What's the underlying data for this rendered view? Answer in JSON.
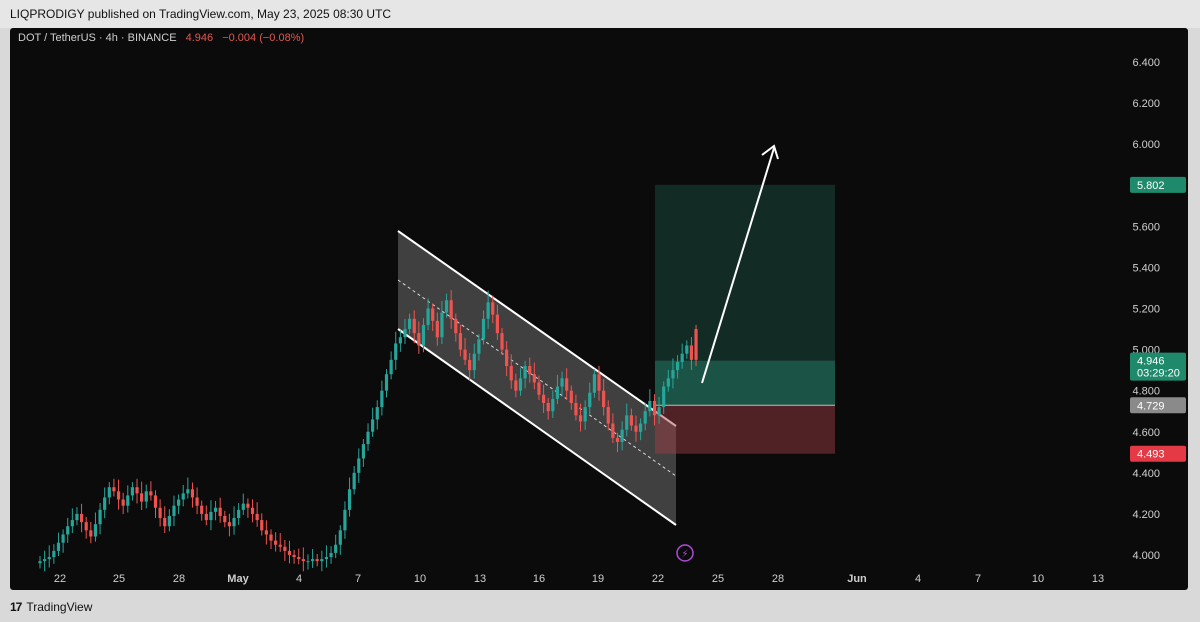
{
  "publish": {
    "text": "LIQPRODIGY published on TradingView.com, May 23, 2025 08:30 UTC"
  },
  "symbol": {
    "name": "DOT / TetherUS · 4h · BINANCE",
    "price": "4.946",
    "change": "−0.004 (−0.08%)"
  },
  "footer": {
    "logo": "17",
    "brand": "TradingView"
  },
  "colors": {
    "up": "#26a69a",
    "down": "#ef5350",
    "bg": "#0b0b0b",
    "target": "#2fa184",
    "stop": "#a33b45"
  },
  "chart_data": {
    "type": "candlestick",
    "title": "DOT / TetherUS · 4h · BINANCE",
    "y_ticks": [
      "6.400",
      "6.200",
      "6.000",
      "5.800",
      "5.600",
      "5.400",
      "5.200",
      "5.000",
      "4.800",
      "4.600",
      "4.400",
      "4.200",
      "4.000"
    ],
    "x_ticks": [
      "22",
      "25",
      "28",
      "May",
      "4",
      "7",
      "10",
      "13",
      "16",
      "19",
      "22",
      "25",
      "28",
      "Jun",
      "4",
      "7",
      "10",
      "13"
    ],
    "ylim": [
      3.98,
      6.5
    ],
    "price_labels": [
      {
        "value": 5.802,
        "text": "5.802",
        "kind": "target"
      },
      {
        "value": 4.946,
        "text": "4.946",
        "sub": "03:29:20",
        "kind": "last"
      },
      {
        "value": 4.729,
        "text": "4.729",
        "kind": "entry"
      },
      {
        "value": 4.493,
        "text": "4.493",
        "kind": "stop"
      }
    ],
    "closes": [
      3.97,
      3.98,
      3.99,
      4.02,
      4.06,
      4.1,
      4.14,
      4.17,
      4.2,
      4.16,
      4.12,
      4.09,
      4.15,
      4.22,
      4.28,
      4.33,
      4.31,
      4.27,
      4.24,
      4.29,
      4.33,
      4.3,
      4.26,
      4.31,
      4.29,
      4.23,
      4.18,
      4.14,
      4.19,
      4.24,
      4.27,
      4.3,
      4.32,
      4.28,
      4.24,
      4.2,
      4.17,
      4.21,
      4.23,
      4.19,
      4.16,
      4.14,
      4.18,
      4.22,
      4.25,
      4.23,
      4.2,
      4.17,
      4.12,
      4.1,
      4.07,
      4.05,
      4.04,
      4.02,
      4.0,
      3.99,
      3.98,
      3.97,
      3.97,
      3.98,
      3.97,
      3.98,
      3.99,
      4.01,
      4.05,
      4.12,
      4.22,
      4.32,
      4.4,
      4.47,
      4.54,
      4.6,
      4.66,
      4.72,
      4.8,
      4.88,
      4.95,
      5.03,
      5.06,
      5.1,
      5.15,
      5.08,
      5.02,
      5.12,
      5.2,
      5.14,
      5.06,
      5.18,
      5.24,
      5.15,
      5.08,
      5.0,
      4.95,
      4.9,
      4.98,
      5.05,
      5.15,
      5.23,
      5.17,
      5.08,
      5.0,
      4.92,
      4.85,
      4.8,
      4.86,
      4.92,
      4.88,
      4.84,
      4.78,
      4.74,
      4.7,
      4.76,
      4.82,
      4.86,
      4.8,
      4.74,
      4.68,
      4.65,
      4.72,
      4.79,
      4.88,
      4.8,
      4.72,
      4.64,
      4.57,
      4.55,
      4.61,
      4.68,
      4.63,
      4.6,
      4.64,
      4.7,
      4.75,
      4.68,
      4.72,
      4.82,
      4.86,
      4.9,
      4.94,
      4.98,
      5.02,
      4.95
    ],
    "annotations": {
      "channel": "descending channel",
      "long_position": {
        "entry": 4.729,
        "target": 5.802,
        "stop": 4.493
      },
      "arrow": "projection up"
    }
  }
}
